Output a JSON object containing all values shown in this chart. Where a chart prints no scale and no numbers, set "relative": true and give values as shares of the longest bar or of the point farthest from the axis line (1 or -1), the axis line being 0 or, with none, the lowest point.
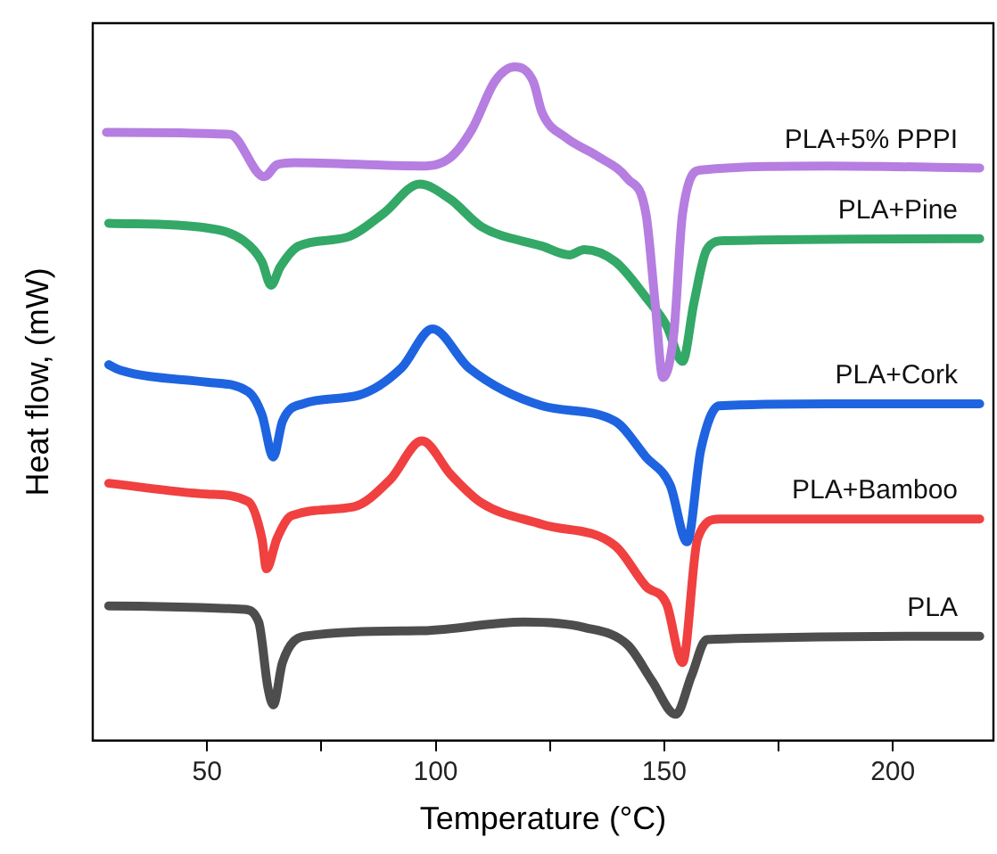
{
  "chart_data": {
    "type": "line",
    "relative": true,
    "xlabel": "Temperature (°C)",
    "ylabel": "Heat flow, (mW)",
    "xlim": [
      25,
      222
    ],
    "xticks": [
      50,
      {
        "value": 75,
        "label": null
      },
      100,
      {
        "value": 125,
        "label": null
      },
      150,
      {
        "value": 175,
        "label": null
      },
      200
    ],
    "tick_labels": "x",
    "grid": false,
    "legend": false,
    "marker": "none",
    "line_style": "solid",
    "series": [
      {
        "name": "PLA+5% PPPI",
        "color": "#b57ee0",
        "x": [
          28,
          55,
          62.5,
          65.3,
          69,
          97,
          103.3,
          108,
          113,
          117.3,
          121.3,
          123.3,
          128.5,
          135.3,
          142,
          146,
          148,
          149.7,
          152.1,
          154,
          158,
          186,
          219
        ],
        "values": [
          0.903,
          0.9,
          0.837,
          0.855,
          0.858,
          0.853,
          0.866,
          0.908,
          0.979,
          1.0,
          0.979,
          0.932,
          0.895,
          0.868,
          0.834,
          0.782,
          0.65,
          0.539,
          0.605,
          0.782,
          0.847,
          0.853,
          0.85
        ]
      },
      {
        "name": "PLA+Pine",
        "color": "#33a867",
        "x": [
          28.5,
          50,
          58,
          62,
          64,
          66,
          70,
          80.5,
          88.5,
          96.5,
          103.3,
          110,
          123.3,
          129.3,
          132.5,
          139.3,
          146,
          150.5,
          154,
          156.5,
          159.3,
          163,
          219
        ],
        "values": [
          0.768,
          0.761,
          0.742,
          0.711,
          0.676,
          0.703,
          0.734,
          0.747,
          0.782,
          0.826,
          0.803,
          0.763,
          0.734,
          0.721,
          0.729,
          0.711,
          0.658,
          0.616,
          0.563,
          0.65,
          0.729,
          0.742,
          0.745
        ]
      },
      {
        "name": "PLA+Cork",
        "color": "#1e64e0",
        "x": [
          28.5,
          31,
          50,
          59,
          62,
          64.5,
          66.5,
          71,
          83.3,
          92.5,
          99.3,
          107.3,
          123.3,
          139.3,
          146,
          151.3,
          155,
          158,
          162,
          186,
          219
        ],
        "values": [
          0.558,
          0.55,
          0.532,
          0.518,
          0.484,
          0.421,
          0.474,
          0.5,
          0.513,
          0.553,
          0.611,
          0.553,
          0.497,
          0.474,
          0.421,
          0.379,
          0.295,
          0.432,
          0.497,
          0.5,
          0.5
        ]
      },
      {
        "name": "PLA+Bamboo",
        "color": "#f04040",
        "x": [
          28.5,
          50,
          59,
          62,
          63,
          65.3,
          68.5,
          82,
          90,
          97,
          103.3,
          110,
          123.3,
          139.3,
          146,
          150.5,
          154,
          157.3,
          162,
          219
        ],
        "values": [
          0.382,
          0.366,
          0.355,
          0.3,
          0.255,
          0.3,
          0.334,
          0.347,
          0.387,
          0.445,
          0.395,
          0.353,
          0.321,
          0.289,
          0.229,
          0.203,
          0.116,
          0.3,
          0.329,
          0.329
        ]
      },
      {
        "name": "PLA",
        "color": "#4d4d4d",
        "x": [
          28.5,
          58,
          61.3,
          63.3,
          64.5,
          66.5,
          71.3,
          96.5,
          119.3,
          132.5,
          142,
          147.3,
          152.5,
          156,
          159.3,
          219
        ],
        "values": [
          0.2,
          0.195,
          0.176,
          0.079,
          0.053,
          0.116,
          0.155,
          0.163,
          0.176,
          0.168,
          0.142,
          0.089,
          0.039,
          0.097,
          0.15,
          0.155
        ]
      }
    ]
  }
}
